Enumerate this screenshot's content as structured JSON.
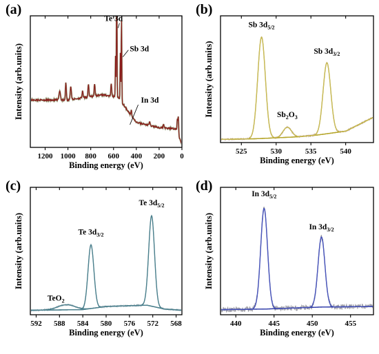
{
  "chart_data": [
    {
      "panel": "(a)",
      "type": "line",
      "xlabel": "Binding energy (eV)",
      "ylabel": "Intensity (arb.units)",
      "xlim": [
        1330,
        0
      ],
      "ylim": [
        0,
        1
      ],
      "x_ticks": [
        1200,
        1000,
        800,
        600,
        400,
        200,
        0
      ],
      "x_tick_labels": [
        "1200",
        "1000",
        "800",
        "600",
        "400",
        "200",
        "0"
      ],
      "reversed_x": true,
      "colors": {
        "spectrum": "#8b1c1c",
        "overlay": "#556b2f"
      },
      "peaks": [
        {
          "x": 1072,
          "h": 0.07,
          "w": 6
        },
        {
          "x": 1018,
          "h": 0.13,
          "w": 4
        },
        {
          "x": 975,
          "h": 0.1,
          "w": 5
        },
        {
          "x": 872,
          "h": 0.05,
          "w": 4
        },
        {
          "x": 820,
          "h": 0.1,
          "w": 4
        },
        {
          "x": 766,
          "h": 0.09,
          "w": 4
        },
        {
          "x": 620,
          "h": 0.09,
          "w": 4
        },
        {
          "x": 582,
          "h": 0.32,
          "w": 2.5
        },
        {
          "x": 572,
          "h": 0.92,
          "w": 2.5
        },
        {
          "x": 540,
          "h": 0.36,
          "w": 2.5
        },
        {
          "x": 530,
          "h": 0.64,
          "w": 2.5
        },
        {
          "x": 444,
          "h": 0.04,
          "w": 3
        },
        {
          "x": 284,
          "h": 0.03,
          "w": 4
        },
        {
          "x": 160,
          "h": 0.03,
          "w": 4
        },
        {
          "x": 40,
          "h": 0.1,
          "w": 3
        },
        {
          "x": 32,
          "h": 0.14,
          "w": 3
        }
      ],
      "background": [
        [
          1330,
          0.36
        ],
        [
          1000,
          0.36
        ],
        [
          700,
          0.4
        ],
        [
          560,
          0.38
        ],
        [
          400,
          0.19
        ],
        [
          200,
          0.15
        ],
        [
          50,
          0.14
        ],
        [
          0,
          0.02
        ]
      ],
      "annotations": [
        {
          "text": "Te 3d",
          "x": 572,
          "y": 0.96
        },
        {
          "text": "Sb 3d",
          "x": 530,
          "y": 0.73
        },
        {
          "text": "In 3d",
          "x": 444,
          "y": 0.34
        }
      ]
    },
    {
      "panel": "(b)",
      "type": "line",
      "xlabel": "Binding energy (eV)",
      "ylabel": "Intensity (arb.units)",
      "xlim": [
        522,
        544
      ],
      "ylim": [
        0,
        1
      ],
      "x_ticks": [
        525,
        530,
        535,
        540
      ],
      "x_tick_labels": [
        "525",
        "530",
        "535",
        "540"
      ],
      "colors": {
        "fit": "#b5a52a",
        "raw": "#c4a9a9",
        "envelope": "#d4c870"
      },
      "background": [
        [
          522,
          0.025
        ],
        [
          527,
          0.03
        ],
        [
          533,
          0.045
        ],
        [
          536,
          0.06
        ],
        [
          540,
          0.09
        ],
        [
          544,
          0.2
        ]
      ],
      "peaks": [
        {
          "name": "Sb 3d5/2",
          "x": 527.9,
          "h": 0.8,
          "w": 0.55
        },
        {
          "name": "Sb2O3",
          "x": 531.6,
          "h": 0.08,
          "w": 0.6
        },
        {
          "name": "Sb 3d3/2",
          "x": 537.3,
          "h": 0.56,
          "w": 0.55
        }
      ],
      "annotations": [
        {
          "label": "Sb 3d",
          "sub": "5/2",
          "x": 527.9,
          "y": 0.91
        },
        {
          "label": "Sb",
          "sub": "2",
          "label2": "O",
          "sub2": "3",
          "x": 531.6,
          "y": 0.2
        },
        {
          "label": "Sb 3d",
          "sub": "3/2",
          "x": 537.3,
          "y": 0.7
        }
      ]
    },
    {
      "panel": "(c)",
      "type": "line",
      "xlabel": "Binding energy (eV)",
      "ylabel": "Intensity (arb.units)",
      "xlim": [
        593,
        567
      ],
      "ylim": [
        0,
        1
      ],
      "x_ticks": [
        592,
        588,
        584,
        580,
        576,
        572,
        568
      ],
      "x_tick_labels": [
        "592",
        "588",
        "584",
        "580",
        "576",
        "572",
        "568"
      ],
      "reversed_x": true,
      "colors": {
        "fit": "#4a7f8c",
        "raw": "#a9b7bf",
        "oxide": "#8fa3ab"
      },
      "background": [
        [
          593,
          0.035
        ],
        [
          584,
          0.04
        ],
        [
          580,
          0.065
        ],
        [
          573,
          0.075
        ],
        [
          570,
          0.045
        ],
        [
          567,
          0.035
        ]
      ],
      "peaks": [
        {
          "name": "Te 3d3/2",
          "x": 582.6,
          "h": 0.5,
          "w": 0.5
        },
        {
          "name": "Te 3d5/2",
          "x": 572.2,
          "h": 0.71,
          "w": 0.5
        },
        {
          "name": "TeO2",
          "x": 586.8,
          "h": 0.04,
          "w": 1.5
        }
      ],
      "annotations": [
        {
          "label": "Te 3d",
          "sub": "3/2",
          "x": 582.6,
          "y": 0.63
        },
        {
          "label": "Te 3d",
          "sub": "5/2",
          "x": 572.2,
          "y": 0.86
        },
        {
          "label": "TeO",
          "sub": "2",
          "x": 588.6,
          "y": 0.11
        }
      ]
    },
    {
      "panel": "(d)",
      "type": "line",
      "xlabel": "Binding energy (eV)",
      "ylabel": "Intensity (arb.units)",
      "xlim": [
        438,
        458
      ],
      "ylim": [
        0,
        1
      ],
      "x_ticks": [
        440,
        445,
        450,
        455
      ],
      "x_tick_labels": [
        "440",
        "445",
        "450",
        "455"
      ],
      "colors": {
        "fit": "#2d3aa8",
        "raw": "#a0a0a8",
        "envelope": "#5a66c8"
      },
      "background": [
        [
          438,
          0.04
        ],
        [
          444,
          0.045
        ],
        [
          451,
          0.06
        ],
        [
          458,
          0.065
        ]
      ],
      "peaks": [
        {
          "name": "In 3d5/2",
          "x": 443.7,
          "h": 0.79,
          "w": 0.45
        },
        {
          "name": "In 3d3/2",
          "x": 451.2,
          "h": 0.55,
          "w": 0.45
        }
      ],
      "annotations": [
        {
          "label": "In 3d",
          "sub": "5/2",
          "x": 443.7,
          "y": 0.93
        },
        {
          "label": "In 3d",
          "sub": "3/2",
          "x": 451.2,
          "y": 0.67
        }
      ]
    }
  ]
}
